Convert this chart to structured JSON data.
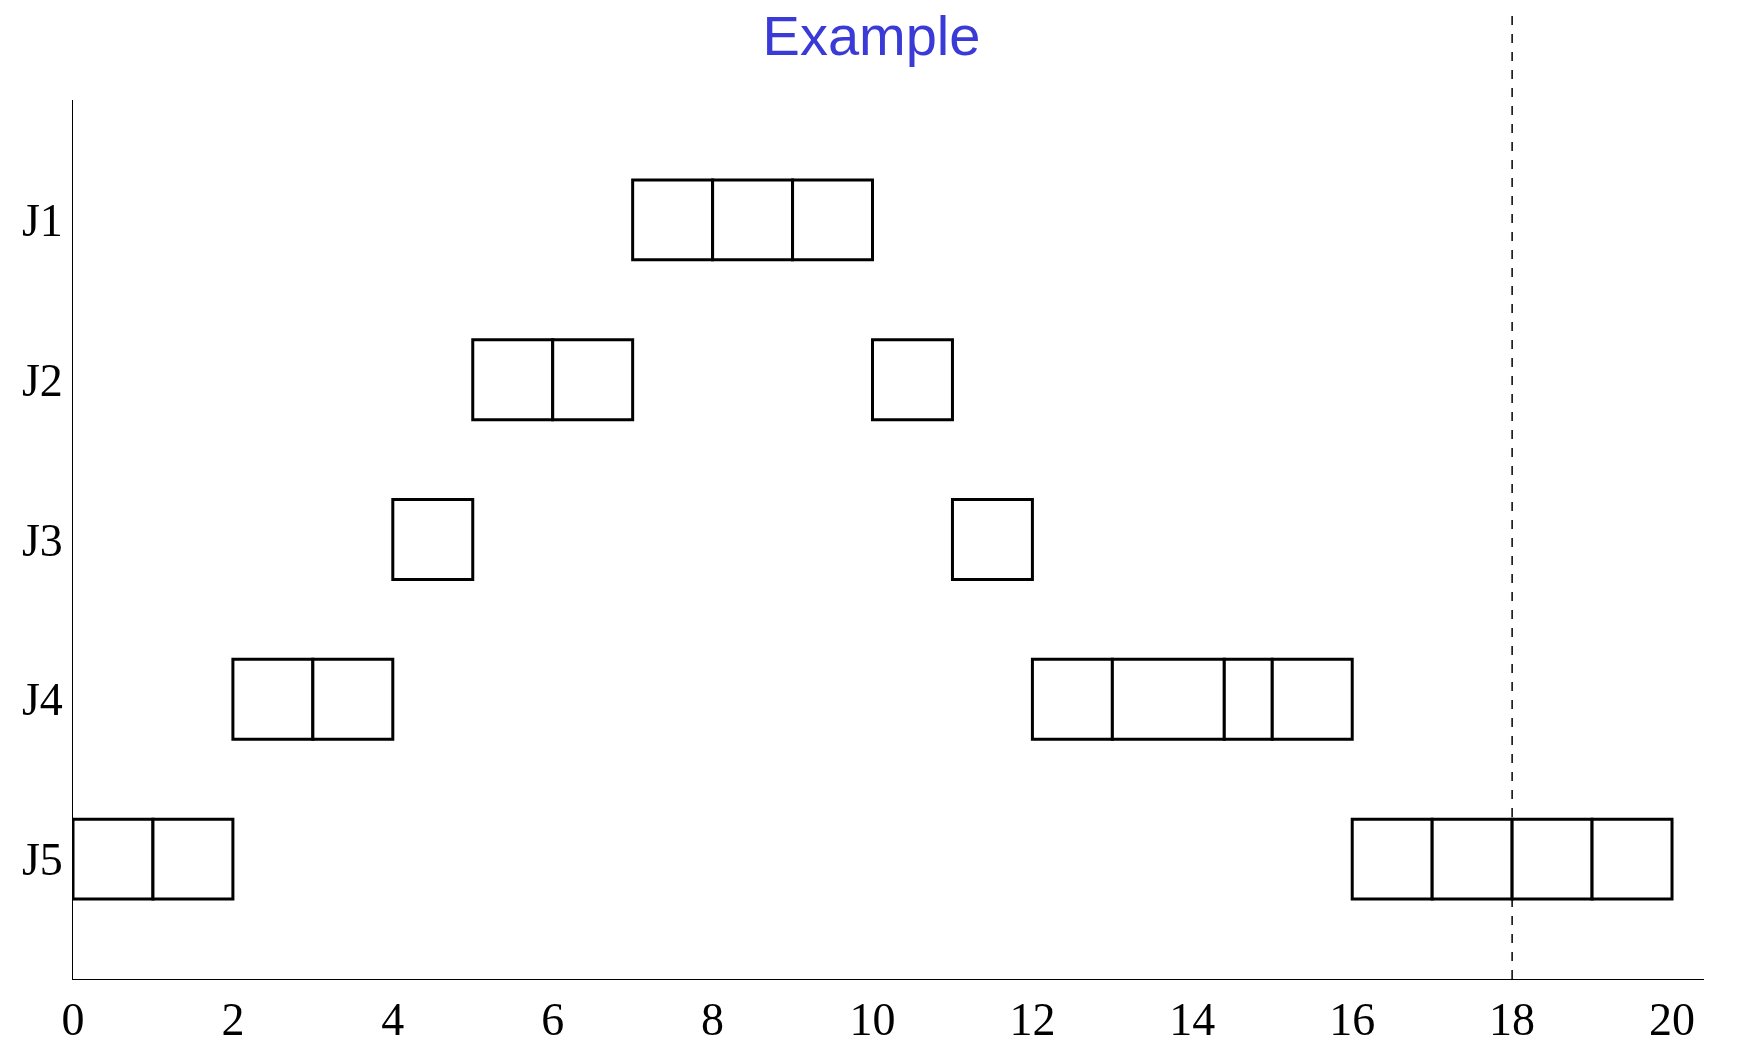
{
  "chart_data": {
    "type": "bar",
    "title": "Example",
    "orientation": "horizontal",
    "categories": [
      "J1",
      "J2",
      "J3",
      "J4",
      "J5"
    ],
    "series": [
      {
        "color": "#ffffff",
        "base": [
          7,
          5,
          4,
          2,
          0
        ],
        "values": [
          1,
          1,
          1,
          1,
          1
        ]
      },
      {
        "color": "#ffffff",
        "base": [
          8,
          6,
          11,
          3,
          1
        ],
        "values": [
          1,
          1,
          1,
          1,
          1
        ]
      },
      {
        "color": "#ffffff",
        "base": [
          9,
          10,
          null,
          12,
          16
        ],
        "values": [
          1,
          1,
          null,
          1,
          1
        ]
      },
      {
        "color": "#ffffff",
        "base": [
          null,
          null,
          null,
          13,
          17
        ],
        "values": [
          null,
          null,
          null,
          1.4,
          1
        ]
      },
      {
        "color": "#ffffff",
        "base": [
          null,
          null,
          null,
          14.4,
          18
        ],
        "values": [
          null,
          null,
          null,
          0.6,
          1
        ]
      },
      {
        "color": "#ffffff",
        "base": [
          null,
          null,
          null,
          15,
          19
        ],
        "values": [
          null,
          null,
          null,
          1,
          1
        ]
      }
    ],
    "xlim": [
      0,
      20.4
    ],
    "xticks": [
      0,
      2,
      4,
      6,
      8,
      10,
      12,
      14,
      16,
      18,
      20
    ],
    "ref_lines": [
      {
        "axis": "x",
        "value": 18,
        "line_style": "dashed",
        "color": "#000000"
      }
    ]
  }
}
